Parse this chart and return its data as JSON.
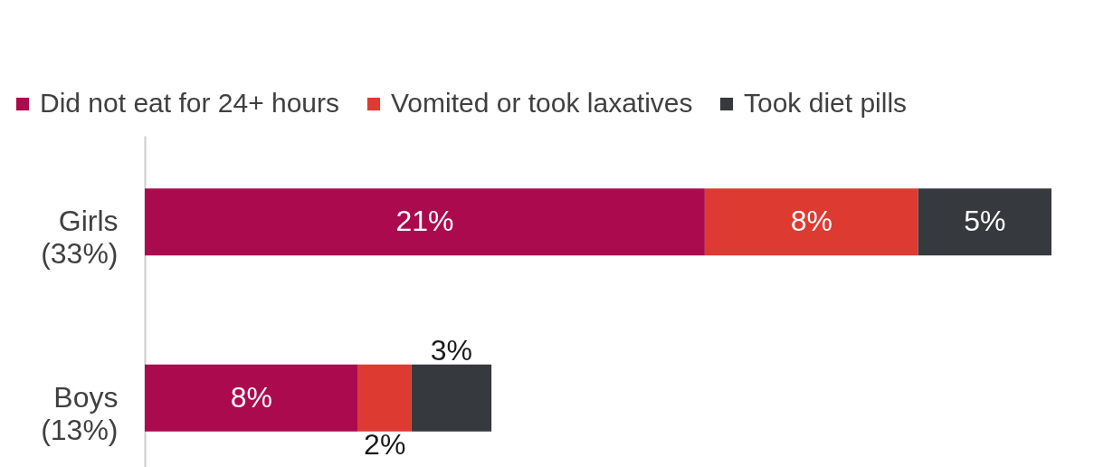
{
  "chart_data": {
    "type": "bar",
    "orientation": "horizontal",
    "stacked": true,
    "categories": [
      "Girls\n(33%)",
      "Boys\n(13%)"
    ],
    "series": [
      {
        "name": "Did not eat for 24+ hours",
        "color": "#ab0a4f",
        "values": [
          21,
          8
        ],
        "value_labels": [
          "21%",
          "8%"
        ]
      },
      {
        "name": "Vomited or took laxatives",
        "color": "#dd3a31",
        "values": [
          8,
          2
        ],
        "value_labels": [
          "8%",
          "2%"
        ]
      },
      {
        "name": "Took diet pills",
        "color": "#36393d",
        "values": [
          5,
          3
        ],
        "value_labels": [
          "5%",
          "3%"
        ]
      }
    ],
    "legend": "top",
    "grid": false
  }
}
